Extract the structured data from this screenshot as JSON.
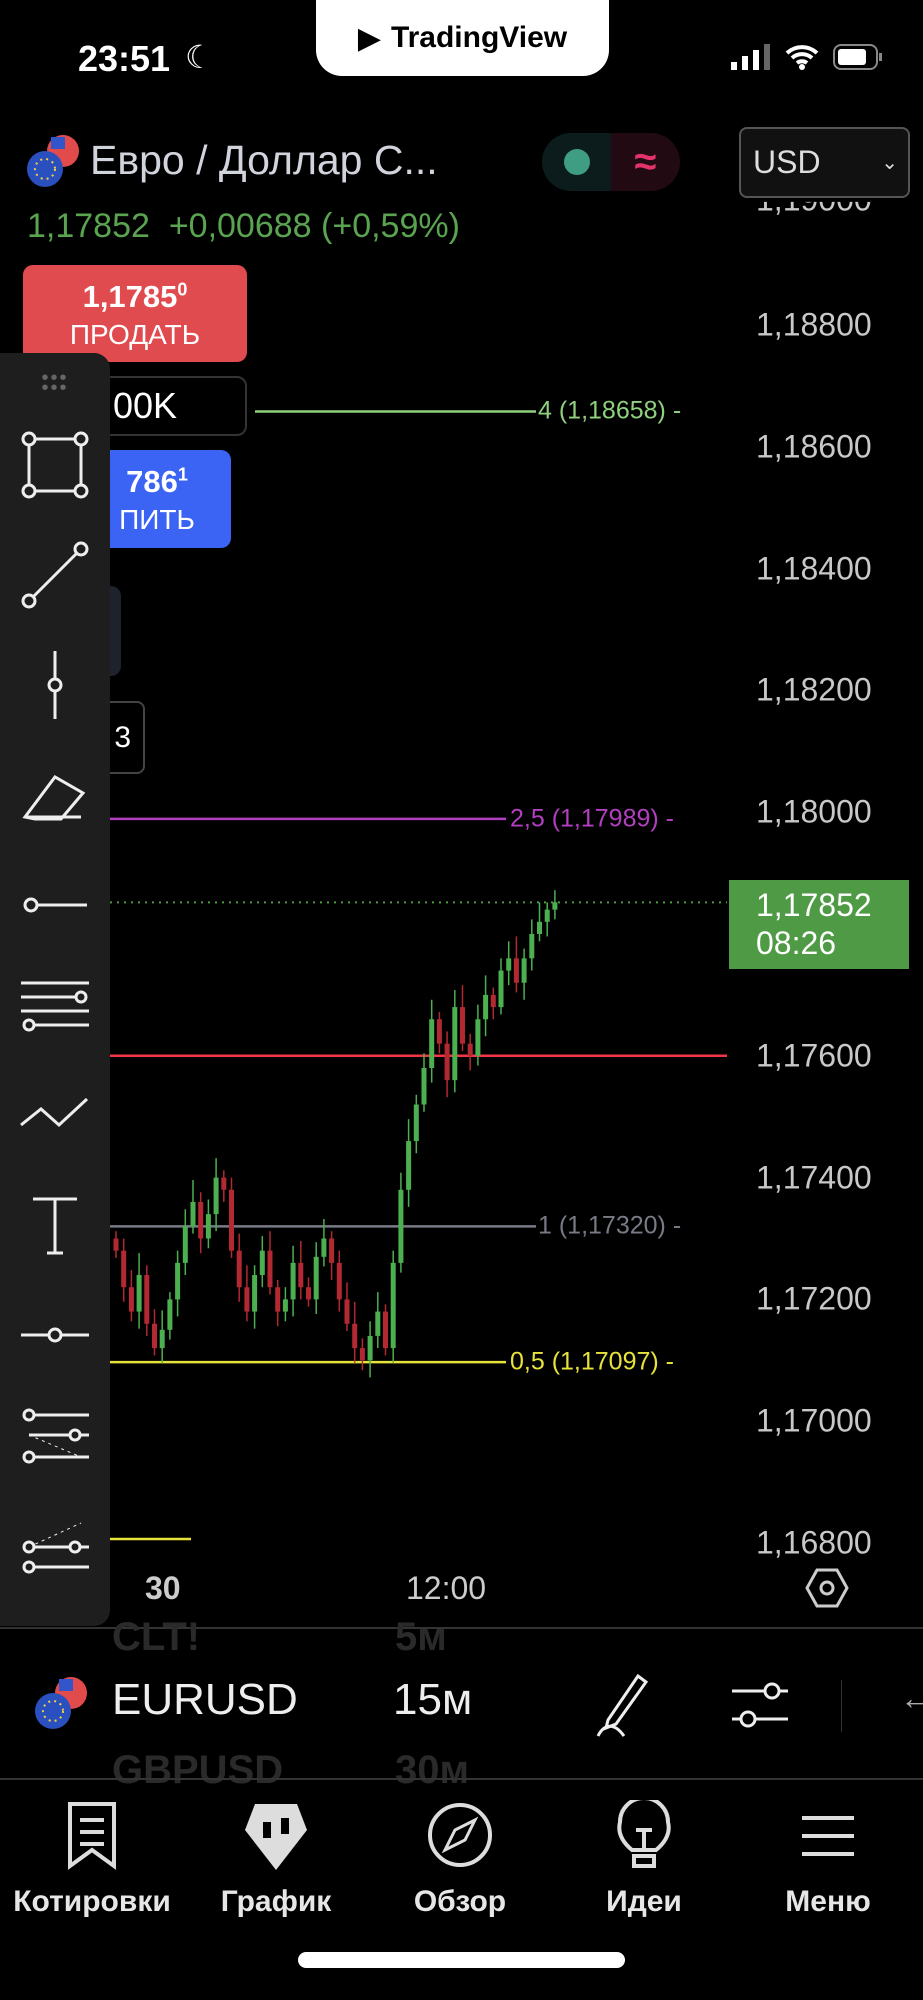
{
  "status_bar": {
    "time": "23:51",
    "app_pill": "TradingView"
  },
  "header": {
    "symbol_title": "Евро / Доллар С...",
    "last_price": "1,17852",
    "change": "+0,00688 (+0,59%)",
    "currency": "USD"
  },
  "trade": {
    "sell_price": "1,1785",
    "sell_price_sup": "0",
    "sell_label": "ПРОДАТЬ",
    "quantity": "00K",
    "buy_price": "786",
    "buy_price_sup": "1",
    "buy_label": "ПИТЬ",
    "partial_value": "3"
  },
  "price_axis": [
    "1,18800",
    "1,18600",
    "1,18400",
    "1,18200",
    "1,18000",
    "1,17600",
    "1,17400",
    "1,17200",
    "1,17000",
    "1,16800"
  ],
  "current_price_tag": {
    "price": "1,17852",
    "countdown": "08:26",
    "color": "#4f9a44"
  },
  "fib_levels": [
    {
      "label": "4 (1,18658) -",
      "price": 1.18658,
      "color": "#8fd17f"
    },
    {
      "label": "2,5 (1,17989) -",
      "price": 1.17989,
      "color": "#b13fc0"
    },
    {
      "label": "1 (1,17320) -",
      "price": 1.1732,
      "color": "#787b86"
    },
    {
      "label": "0,5 (1,17097) -",
      "price": 1.17097,
      "color": "#e8e33a"
    }
  ],
  "horizontal_line": {
    "price": 1.176,
    "color": "#f23645"
  },
  "time_axis": {
    "labels": [
      "30",
      "12:00"
    ]
  },
  "candles_close": [
    1.1728,
    1.1722,
    1.1718,
    1.1724,
    1.1716,
    1.1712,
    1.1715,
    1.172,
    1.1726,
    1.1732,
    1.1736,
    1.173,
    1.1734,
    1.174,
    1.1738,
    1.1728,
    1.1722,
    1.1718,
    1.1724,
    1.1728,
    1.1722,
    1.1718,
    1.172,
    1.1726,
    1.1722,
    1.172,
    1.1727,
    1.173,
    1.1726,
    1.172,
    1.1716,
    1.1712,
    1.171,
    1.1714,
    1.1718,
    1.1712,
    1.1726,
    1.1738,
    1.1746,
    1.1752,
    1.1758,
    1.1766,
    1.1762,
    1.1756,
    1.1768,
    1.1762,
    1.176,
    1.1766,
    1.177,
    1.1768,
    1.1774,
    1.1776,
    1.1772,
    1.1776,
    1.178,
    1.1782,
    1.1784,
    1.17852
  ],
  "symbol_bar": {
    "symbol": "EURUSD",
    "interval": "15м",
    "prev_symbol": "CLT!",
    "prev_interval": "5м",
    "next_symbol": "GBPUSD",
    "next_interval": "30м"
  },
  "nav": [
    {
      "label": "Котировки",
      "icon": "watchlist-icon"
    },
    {
      "label": "График",
      "icon": "chart-icon"
    },
    {
      "label": "Обзор",
      "icon": "compass-icon"
    },
    {
      "label": "Идеи",
      "icon": "lightbulb-icon"
    },
    {
      "label": "Меню",
      "icon": "menu-icon"
    }
  ]
}
